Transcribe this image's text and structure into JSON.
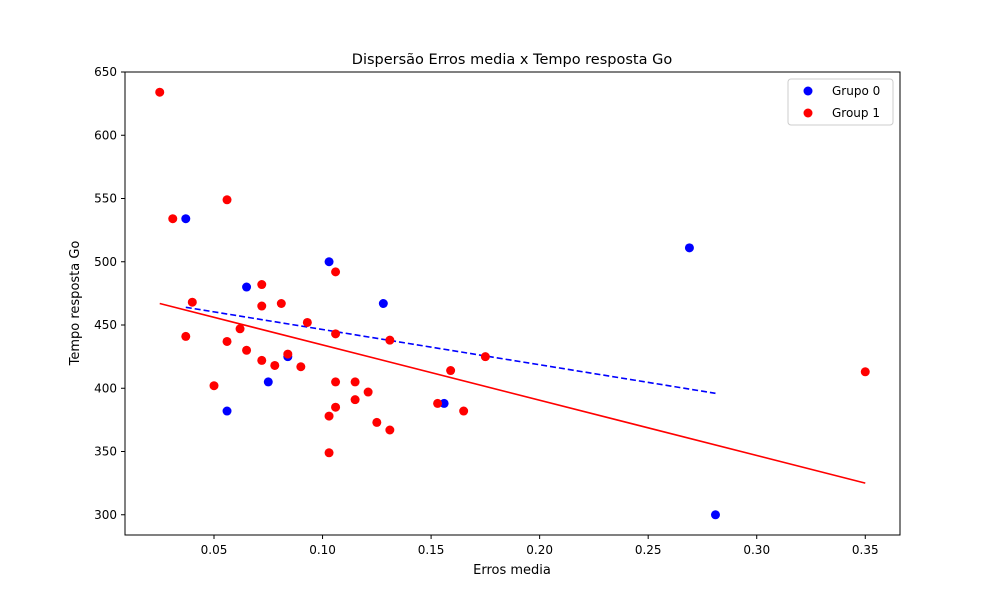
{
  "chart_data": {
    "type": "scatter",
    "title": "Dispersão Erros media x Tempo resposta Go",
    "xlabel": "Erros media",
    "ylabel": "Tempo resposta Go",
    "xlim": [
      0.009,
      0.366
    ],
    "ylim": [
      284,
      650
    ],
    "xticks": [
      0.05,
      0.1,
      0.15,
      0.2,
      0.25,
      0.3,
      0.35
    ],
    "xtick_labels": [
      "0.05",
      "0.10",
      "0.15",
      "0.20",
      "0.25",
      "0.30",
      "0.35"
    ],
    "yticks": [
      300,
      350,
      400,
      450,
      500,
      550,
      600,
      650
    ],
    "ytick_labels": [
      "300",
      "350",
      "400",
      "450",
      "500",
      "550",
      "600",
      "650"
    ],
    "legend_position": "top-right",
    "grid": false,
    "series": [
      {
        "name": "Grupo 0",
        "color": "#0000ff",
        "points": [
          [
            0.037,
            534
          ],
          [
            0.056,
            382
          ],
          [
            0.065,
            480
          ],
          [
            0.075,
            405
          ],
          [
            0.084,
            425
          ],
          [
            0.103,
            500
          ],
          [
            0.128,
            467
          ],
          [
            0.156,
            388
          ],
          [
            0.269,
            511
          ],
          [
            0.281,
            300
          ]
        ],
        "trend": {
          "x": [
            0.037,
            0.281
          ],
          "y": [
            464,
            396
          ],
          "style": "dashed"
        }
      },
      {
        "name": "Group 1",
        "color": "#ff0000",
        "points": [
          [
            0.025,
            634
          ],
          [
            0.031,
            534
          ],
          [
            0.037,
            441
          ],
          [
            0.04,
            468
          ],
          [
            0.05,
            402
          ],
          [
            0.056,
            549
          ],
          [
            0.056,
            437
          ],
          [
            0.062,
            447
          ],
          [
            0.065,
            430
          ],
          [
            0.072,
            482
          ],
          [
            0.072,
            465
          ],
          [
            0.072,
            422
          ],
          [
            0.078,
            418
          ],
          [
            0.081,
            467
          ],
          [
            0.084,
            427
          ],
          [
            0.09,
            417
          ],
          [
            0.093,
            452
          ],
          [
            0.103,
            378
          ],
          [
            0.103,
            349
          ],
          [
            0.106,
            492
          ],
          [
            0.106,
            443
          ],
          [
            0.106,
            405
          ],
          [
            0.106,
            385
          ],
          [
            0.115,
            405
          ],
          [
            0.115,
            391
          ],
          [
            0.121,
            397
          ],
          [
            0.125,
            373
          ],
          [
            0.131,
            438
          ],
          [
            0.131,
            367
          ],
          [
            0.153,
            388
          ],
          [
            0.159,
            414
          ],
          [
            0.165,
            382
          ],
          [
            0.175,
            425
          ],
          [
            0.35,
            413
          ]
        ],
        "trend": {
          "x": [
            0.025,
            0.35
          ],
          "y": [
            467,
            325
          ],
          "style": "solid"
        }
      }
    ]
  }
}
